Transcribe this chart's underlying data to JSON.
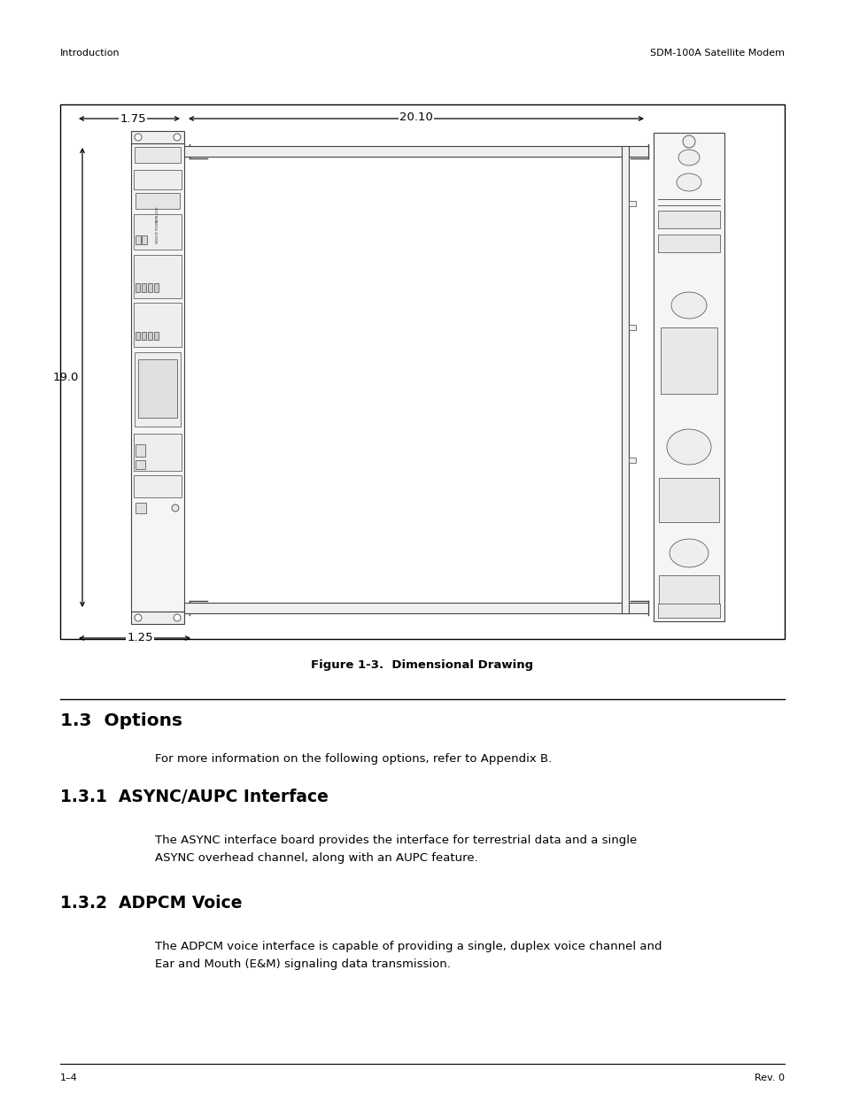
{
  "header_left": "Introduction",
  "header_right": "SDM-100A Satellite Modem",
  "footer_left": "1–4",
  "footer_right": "Rev. 0",
  "fig_caption": "Figure 1-3.  Dimensional Drawing",
  "section_1_3_title": "1.3  Options",
  "section_1_3_body": "For more information on the following options, refer to Appendix B.",
  "section_1_3_1_title": "1.3.1  ASYNC/AUPC Interface",
  "section_1_3_1_body": "The ASYNC interface board provides the interface for terrestrial data and a single\nASYNC overhead channel, along with an AUPC feature.",
  "section_1_3_2_title": "1.3.2  ADPCM Voice",
  "section_1_3_2_body": "The ADPCM voice interface is capable of providing a single, duplex voice channel and\nEar and Mouth (E&M) signaling data transmission.",
  "dim_175": "1.75",
  "dim_2010": "20.10",
  "dim_190": "19.0",
  "dim_125": "1.25",
  "bg_color": "#ffffff",
  "line_color": "#000000",
  "text_color": "#000000",
  "draw_color": "#555555",
  "lc": "#444444"
}
